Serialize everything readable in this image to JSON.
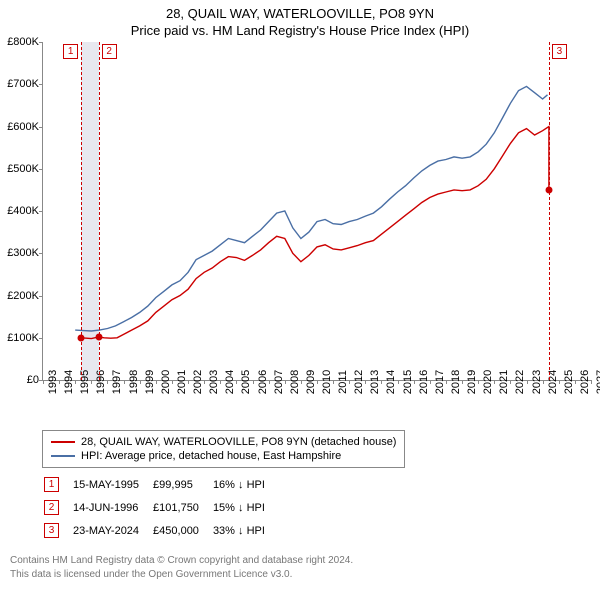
{
  "title": "28, QUAIL WAY, WATERLOOVILLE, PO8 9YN",
  "subtitle": "Price paid vs. HM Land Registry's House Price Index (HPI)",
  "chart": {
    "ylim": [
      0,
      800000
    ],
    "ytick_step": 100000,
    "y_labels": [
      "£0",
      "£100K",
      "£200K",
      "£300K",
      "£400K",
      "£500K",
      "£600K",
      "£700K",
      "£800K"
    ],
    "xlim": [
      1993,
      2027
    ],
    "x_labels": [
      "1993",
      "1994",
      "1995",
      "1996",
      "1997",
      "1998",
      "1999",
      "2000",
      "2001",
      "2002",
      "2003",
      "2004",
      "2005",
      "2006",
      "2007",
      "2008",
      "2009",
      "2010",
      "2011",
      "2012",
      "2013",
      "2014",
      "2015",
      "2016",
      "2017",
      "2018",
      "2019",
      "2020",
      "2021",
      "2022",
      "2023",
      "2024",
      "2025",
      "2026",
      "2027"
    ],
    "series_red": {
      "color": "#cc0000",
      "label": "28, QUAIL WAY, WATERLOOVILLE, PO8 9YN (detached house)",
      "data": [
        [
          1995.37,
          99995
        ],
        [
          1995.7,
          99000
        ],
        [
          1996.0,
          98000
        ],
        [
          1996.45,
          101750
        ],
        [
          1996.8,
          100000
        ],
        [
          1997.2,
          99000
        ],
        [
          1997.6,
          100000
        ],
        [
          1998.0,
          108000
        ],
        [
          1998.5,
          118000
        ],
        [
          1999.0,
          128000
        ],
        [
          1999.5,
          140000
        ],
        [
          2000.0,
          160000
        ],
        [
          2000.5,
          175000
        ],
        [
          2001.0,
          190000
        ],
        [
          2001.5,
          200000
        ],
        [
          2002.0,
          215000
        ],
        [
          2002.5,
          240000
        ],
        [
          2003.0,
          255000
        ],
        [
          2003.5,
          265000
        ],
        [
          2004.0,
          280000
        ],
        [
          2004.5,
          292000
        ],
        [
          2005.0,
          290000
        ],
        [
          2005.5,
          283000
        ],
        [
          2006.0,
          295000
        ],
        [
          2006.5,
          308000
        ],
        [
          2007.0,
          325000
        ],
        [
          2007.5,
          340000
        ],
        [
          2008.0,
          335000
        ],
        [
          2008.5,
          300000
        ],
        [
          2009.0,
          280000
        ],
        [
          2009.5,
          295000
        ],
        [
          2010.0,
          315000
        ],
        [
          2010.5,
          320000
        ],
        [
          2011.0,
          310000
        ],
        [
          2011.5,
          308000
        ],
        [
          2012.0,
          313000
        ],
        [
          2012.5,
          318000
        ],
        [
          2013.0,
          325000
        ],
        [
          2013.5,
          330000
        ],
        [
          2014.0,
          345000
        ],
        [
          2014.5,
          360000
        ],
        [
          2015.0,
          375000
        ],
        [
          2015.5,
          390000
        ],
        [
          2016.0,
          405000
        ],
        [
          2016.5,
          420000
        ],
        [
          2017.0,
          432000
        ],
        [
          2017.5,
          440000
        ],
        [
          2018.0,
          445000
        ],
        [
          2018.5,
          450000
        ],
        [
          2019.0,
          448000
        ],
        [
          2019.5,
          450000
        ],
        [
          2020.0,
          460000
        ],
        [
          2020.5,
          475000
        ],
        [
          2021.0,
          500000
        ],
        [
          2021.5,
          530000
        ],
        [
          2022.0,
          560000
        ],
        [
          2022.5,
          585000
        ],
        [
          2023.0,
          595000
        ],
        [
          2023.5,
          580000
        ],
        [
          2024.0,
          590000
        ],
        [
          2024.39,
          600000
        ],
        [
          2024.39,
          450000
        ]
      ]
    },
    "series_blue": {
      "color": "#4a6fa5",
      "label": "HPI: Average price, detached house, East Hampshire",
      "data": [
        [
          1995.0,
          118000
        ],
        [
          1995.5,
          117000
        ],
        [
          1996.0,
          116000
        ],
        [
          1996.5,
          118000
        ],
        [
          1997.0,
          122000
        ],
        [
          1997.5,
          128000
        ],
        [
          1998.0,
          138000
        ],
        [
          1998.5,
          148000
        ],
        [
          1999.0,
          160000
        ],
        [
          1999.5,
          175000
        ],
        [
          2000.0,
          195000
        ],
        [
          2000.5,
          210000
        ],
        [
          2001.0,
          225000
        ],
        [
          2001.5,
          235000
        ],
        [
          2002.0,
          255000
        ],
        [
          2002.5,
          285000
        ],
        [
          2003.0,
          295000
        ],
        [
          2003.5,
          305000
        ],
        [
          2004.0,
          320000
        ],
        [
          2004.5,
          335000
        ],
        [
          2005.0,
          330000
        ],
        [
          2005.5,
          325000
        ],
        [
          2006.0,
          340000
        ],
        [
          2006.5,
          355000
        ],
        [
          2007.0,
          375000
        ],
        [
          2007.5,
          395000
        ],
        [
          2008.0,
          400000
        ],
        [
          2008.5,
          360000
        ],
        [
          2009.0,
          335000
        ],
        [
          2009.5,
          350000
        ],
        [
          2010.0,
          375000
        ],
        [
          2010.5,
          380000
        ],
        [
          2011.0,
          370000
        ],
        [
          2011.5,
          368000
        ],
        [
          2012.0,
          375000
        ],
        [
          2012.5,
          380000
        ],
        [
          2013.0,
          388000
        ],
        [
          2013.5,
          395000
        ],
        [
          2014.0,
          410000
        ],
        [
          2014.5,
          428000
        ],
        [
          2015.0,
          445000
        ],
        [
          2015.5,
          460000
        ],
        [
          2016.0,
          478000
        ],
        [
          2016.5,
          495000
        ],
        [
          2017.0,
          508000
        ],
        [
          2017.5,
          518000
        ],
        [
          2018.0,
          522000
        ],
        [
          2018.5,
          528000
        ],
        [
          2019.0,
          525000
        ],
        [
          2019.5,
          528000
        ],
        [
          2020.0,
          540000
        ],
        [
          2020.5,
          558000
        ],
        [
          2021.0,
          585000
        ],
        [
          2021.5,
          620000
        ],
        [
          2022.0,
          655000
        ],
        [
          2022.5,
          685000
        ],
        [
          2023.0,
          695000
        ],
        [
          2023.5,
          680000
        ],
        [
          2024.0,
          665000
        ],
        [
          2024.3,
          675000
        ]
      ]
    },
    "shaded_ranges": [
      [
        1995.37,
        1996.45
      ]
    ],
    "dash_lines": [
      {
        "x": 1995.37,
        "color": "#cc0000"
      },
      {
        "x": 1996.45,
        "color": "#cc0000"
      },
      {
        "x": 2024.39,
        "color": "#cc0000"
      }
    ],
    "markers": [
      {
        "num": "1",
        "x": 1995.37,
        "color": "#cc0000",
        "offset_x": -18
      },
      {
        "num": "2",
        "x": 1996.45,
        "color": "#cc0000",
        "offset_x": 3
      },
      {
        "num": "3",
        "x": 2024.39,
        "color": "#cc0000",
        "offset_x": 3
      }
    ],
    "points": [
      {
        "x": 1995.37,
        "y": 99995,
        "color": "#cc0000"
      },
      {
        "x": 1996.45,
        "y": 101750,
        "color": "#cc0000"
      },
      {
        "x": 2024.39,
        "y": 450000,
        "color": "#cc0000"
      }
    ]
  },
  "events": [
    {
      "num": "1",
      "date": "15-MAY-1995",
      "price": "£99,995",
      "diff": "16% ↓ HPI"
    },
    {
      "num": "2",
      "date": "14-JUN-1996",
      "price": "£101,750",
      "diff": "15% ↓ HPI"
    },
    {
      "num": "3",
      "date": "23-MAY-2024",
      "price": "£450,000",
      "diff": "33% ↓ HPI"
    }
  ],
  "footer1": "Contains HM Land Registry data © Crown copyright and database right 2024.",
  "footer2": "This data is licensed under the Open Government Licence v3.0."
}
